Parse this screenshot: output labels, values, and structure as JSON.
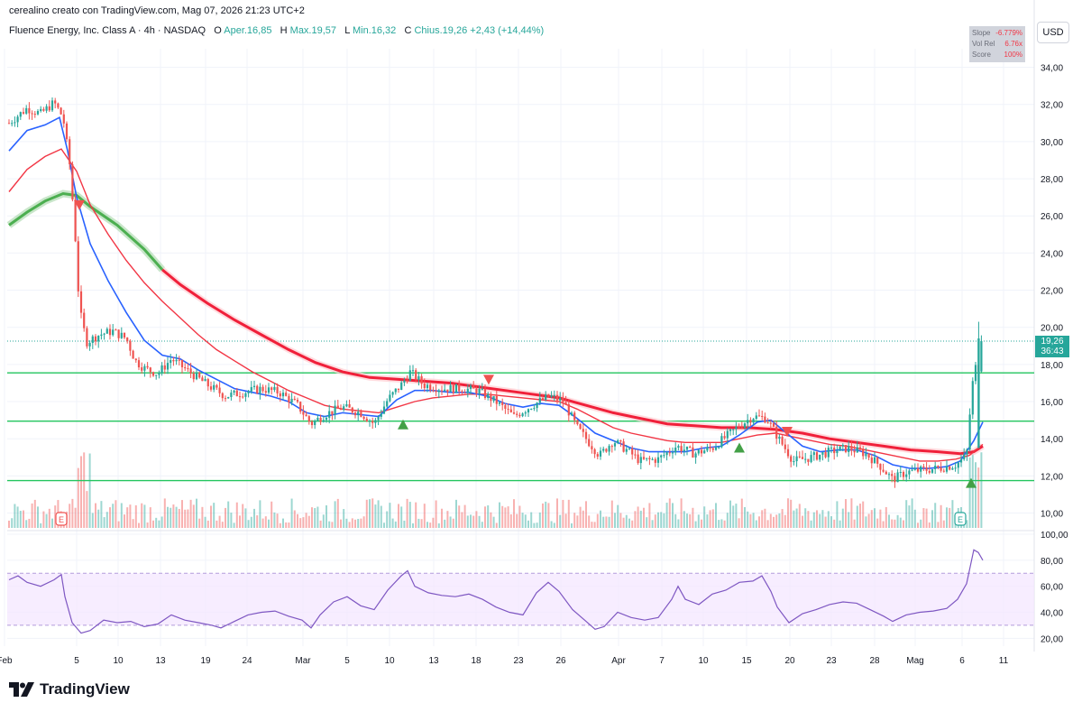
{
  "header": {
    "author_line": "cerealino creato con TradingView.com, Mag 07, 2026 21:23 UTC+2"
  },
  "legend": {
    "instrument": "Fluence Energy, Inc. Class A · 4h · NASDAQ",
    "open_label": "O",
    "open_value": "Aper.16,85",
    "high_label": "H",
    "high_value": "Max.19,57",
    "low_label": "L",
    "low_value": "Min.16,32",
    "close_label": "C",
    "close_value": "Chius.19,26",
    "change": "+2,43 (+14,44%)"
  },
  "indicator_box": {
    "rows": [
      {
        "key": "Slope",
        "value": "-6.779%"
      },
      {
        "key": "Vol Rel",
        "value": "6.76x"
      },
      {
        "key": "Score",
        "value": "100%"
      }
    ]
  },
  "currency": "USD",
  "price_tag": {
    "price": "19,26",
    "countdown": "36:43"
  },
  "brand": "TradingView",
  "colors": {
    "up": "#26a69a",
    "down": "#ef5350",
    "ema_fast": "#2962ff",
    "ema_mid": "#f23645",
    "ema_slow_red": "#f0203a",
    "ema_slow_green": "#4caf50",
    "rsi": "#7e57c2",
    "level": "#22c55e"
  },
  "chart_data": {
    "type": "candlestick",
    "price_axis": {
      "ticks": [
        "34,00",
        "32,00",
        "30,00",
        "28,00",
        "26,00",
        "24,00",
        "22,00",
        "20,00",
        "18,00",
        "16,00",
        "14,00",
        "12,00",
        "10,00"
      ],
      "ylim": [
        9.2,
        35
      ]
    },
    "rsi_axis": {
      "ticks": [
        "100,00",
        "80,00",
        "60,00",
        "40,00",
        "20,00"
      ],
      "ylim": [
        14,
        100
      ],
      "band": [
        30,
        70
      ]
    },
    "x_axis": {
      "ticks": [
        "Feb",
        "5",
        "10",
        "13",
        "19",
        "24",
        "Mar",
        "5",
        "10",
        "13",
        "18",
        "23",
        "26",
        "Apr",
        "7",
        "10",
        "15",
        "20",
        "23",
        "28",
        "Mag",
        "6",
        "11"
      ],
      "tick_index": [
        5,
        85,
        131,
        178,
        228,
        274,
        336,
        385,
        432,
        481,
        528,
        575,
        622,
        686,
        734,
        780,
        828,
        876,
        922,
        970,
        1015,
        1067,
        1113
      ]
    },
    "horizontal_levels": [
      17.55,
      14.95,
      11.75
    ],
    "last_price": 19.26,
    "anchors": {
      "close_path": [
        [
          10,
          31.0
        ],
        [
          30,
          31.8
        ],
        [
          45,
          31.5
        ],
        [
          60,
          32.1
        ],
        [
          70,
          31.3
        ],
        [
          78,
          28.5
        ],
        [
          84,
          24.5
        ],
        [
          88,
          21.0
        ],
        [
          92,
          20.1
        ],
        [
          96,
          19.2
        ],
        [
          110,
          19.6
        ],
        [
          125,
          19.8
        ],
        [
          140,
          19.4
        ],
        [
          150,
          18.2
        ],
        [
          160,
          17.8
        ],
        [
          175,
          17.5
        ],
        [
          190,
          18.3
        ],
        [
          210,
          17.6
        ],
        [
          230,
          16.9
        ],
        [
          250,
          16.3
        ],
        [
          270,
          16.5
        ],
        [
          290,
          16.7
        ],
        [
          310,
          16.5
        ],
        [
          330,
          15.8
        ],
        [
          345,
          14.8
        ],
        [
          360,
          15.3
        ],
        [
          380,
          15.7
        ],
        [
          400,
          15.4
        ],
        [
          415,
          14.8
        ],
        [
          430,
          16.1
        ],
        [
          445,
          16.9
        ],
        [
          455,
          17.6
        ],
        [
          470,
          16.9
        ],
        [
          490,
          16.7
        ],
        [
          510,
          16.7
        ],
        [
          530,
          16.6
        ],
        [
          550,
          16.0
        ],
        [
          570,
          15.2
        ],
        [
          590,
          15.8
        ],
        [
          610,
          16.3
        ],
        [
          625,
          16.0
        ],
        [
          640,
          14.6
        ],
        [
          655,
          13.7
        ],
        [
          665,
          13.1
        ],
        [
          680,
          13.9
        ],
        [
          695,
          13.4
        ],
        [
          710,
          12.8
        ],
        [
          730,
          12.9
        ],
        [
          750,
          13.6
        ],
        [
          770,
          13.2
        ],
        [
          790,
          13.5
        ],
        [
          805,
          14.1
        ],
        [
          820,
          14.7
        ],
        [
          835,
          15.2
        ],
        [
          850,
          15.1
        ],
        [
          865,
          13.9
        ],
        [
          880,
          12.8
        ],
        [
          900,
          13.0
        ],
        [
          920,
          13.3
        ],
        [
          940,
          13.5
        ],
        [
          960,
          13.2
        ],
        [
          975,
          12.6
        ],
        [
          990,
          11.8
        ],
        [
          1005,
          12.2
        ],
        [
          1020,
          12.3
        ],
        [
          1040,
          12.4
        ],
        [
          1060,
          12.6
        ],
        [
          1072,
          13.1
        ],
        [
          1078,
          16.8
        ],
        [
          1083,
          18.1
        ],
        [
          1088,
          17.5
        ],
        [
          1091,
          19.26
        ]
      ],
      "ema_fast_path": [
        [
          10,
          29.5
        ],
        [
          30,
          30.6
        ],
        [
          50,
          30.9
        ],
        [
          66,
          31.3
        ],
        [
          75,
          29.5
        ],
        [
          85,
          27.0
        ],
        [
          100,
          24.5
        ],
        [
          120,
          22.5
        ],
        [
          140,
          20.8
        ],
        [
          160,
          19.3
        ],
        [
          180,
          18.5
        ],
        [
          200,
          18.3
        ],
        [
          220,
          17.7
        ],
        [
          240,
          17.2
        ],
        [
          260,
          16.7
        ],
        [
          280,
          16.5
        ],
        [
          300,
          16.3
        ],
        [
          320,
          16.0
        ],
        [
          340,
          15.4
        ],
        [
          360,
          15.2
        ],
        [
          380,
          15.4
        ],
        [
          400,
          15.3
        ],
        [
          420,
          15.2
        ],
        [
          440,
          16.1
        ],
        [
          460,
          16.6
        ],
        [
          480,
          16.6
        ],
        [
          500,
          16.5
        ],
        [
          520,
          16.5
        ],
        [
          540,
          16.3
        ],
        [
          560,
          15.9
        ],
        [
          580,
          15.7
        ],
        [
          600,
          15.9
        ],
        [
          620,
          15.8
        ],
        [
          640,
          15.1
        ],
        [
          660,
          14.3
        ],
        [
          680,
          13.9
        ],
        [
          700,
          13.5
        ],
        [
          720,
          13.3
        ],
        [
          740,
          13.3
        ],
        [
          760,
          13.3
        ],
        [
          780,
          13.5
        ],
        [
          800,
          13.6
        ],
        [
          820,
          14.2
        ],
        [
          840,
          14.9
        ],
        [
          855,
          15.0
        ],
        [
          870,
          14.4
        ],
        [
          890,
          13.6
        ],
        [
          910,
          13.3
        ],
        [
          930,
          13.4
        ],
        [
          950,
          13.4
        ],
        [
          970,
          13.1
        ],
        [
          990,
          12.6
        ],
        [
          1010,
          12.4
        ],
        [
          1030,
          12.4
        ],
        [
          1050,
          12.5
        ],
        [
          1065,
          12.8
        ],
        [
          1080,
          13.9
        ],
        [
          1090,
          14.9
        ]
      ],
      "ema_mid_path": [
        [
          10,
          27.3
        ],
        [
          30,
          28.5
        ],
        [
          50,
          29.2
        ],
        [
          68,
          29.6
        ],
        [
          85,
          28.4
        ],
        [
          100,
          26.6
        ],
        [
          120,
          25.0
        ],
        [
          140,
          23.6
        ],
        [
          160,
          22.4
        ],
        [
          180,
          21.4
        ],
        [
          200,
          20.5
        ],
        [
          220,
          19.6
        ],
        [
          240,
          18.8
        ],
        [
          260,
          18.2
        ],
        [
          280,
          17.6
        ],
        [
          300,
          17.1
        ],
        [
          320,
          16.6
        ],
        [
          340,
          16.2
        ],
        [
          360,
          15.8
        ],
        [
          380,
          15.6
        ],
        [
          400,
          15.5
        ],
        [
          420,
          15.4
        ],
        [
          440,
          15.7
        ],
        [
          460,
          16.0
        ],
        [
          480,
          16.2
        ],
        [
          500,
          16.3
        ],
        [
          520,
          16.4
        ],
        [
          540,
          16.4
        ],
        [
          560,
          16.3
        ],
        [
          580,
          16.2
        ],
        [
          600,
          16.1
        ],
        [
          620,
          16.0
        ],
        [
          640,
          15.6
        ],
        [
          660,
          15.1
        ],
        [
          680,
          14.6
        ],
        [
          700,
          14.3
        ],
        [
          720,
          14.1
        ],
        [
          740,
          13.9
        ],
        [
          760,
          13.8
        ],
        [
          780,
          13.8
        ],
        [
          800,
          13.8
        ],
        [
          820,
          14.0
        ],
        [
          840,
          14.2
        ],
        [
          860,
          14.3
        ],
        [
          880,
          14.1
        ],
        [
          900,
          13.9
        ],
        [
          920,
          13.7
        ],
        [
          940,
          13.6
        ],
        [
          960,
          13.4
        ],
        [
          980,
          13.2
        ],
        [
          1000,
          13.0
        ],
        [
          1020,
          12.8
        ],
        [
          1040,
          12.8
        ],
        [
          1060,
          12.9
        ],
        [
          1075,
          13.1
        ],
        [
          1090,
          13.7
        ]
      ],
      "ema_slow_path": [
        [
          10,
          25.5
        ],
        [
          30,
          26.2
        ],
        [
          50,
          26.8
        ],
        [
          70,
          27.2
        ],
        [
          85,
          27.1
        ],
        [
          100,
          26.5
        ],
        [
          130,
          25.5
        ],
        [
          160,
          24.2
        ],
        [
          180,
          23.1
        ],
        [
          200,
          22.3
        ],
        [
          230,
          21.3
        ],
        [
          260,
          20.4
        ],
        [
          290,
          19.6
        ],
        [
          320,
          18.8
        ],
        [
          350,
          18.1
        ],
        [
          380,
          17.6
        ],
        [
          410,
          17.3
        ],
        [
          440,
          17.2
        ],
        [
          470,
          17.1
        ],
        [
          500,
          17.0
        ],
        [
          530,
          16.8
        ],
        [
          560,
          16.6
        ],
        [
          590,
          16.4
        ],
        [
          620,
          16.2
        ],
        [
          650,
          15.8
        ],
        [
          680,
          15.4
        ],
        [
          710,
          15.1
        ],
        [
          740,
          14.8
        ],
        [
          770,
          14.7
        ],
        [
          800,
          14.6
        ],
        [
          830,
          14.6
        ],
        [
          860,
          14.5
        ],
        [
          890,
          14.3
        ],
        [
          920,
          14.0
        ],
        [
          950,
          13.8
        ],
        [
          980,
          13.6
        ],
        [
          1010,
          13.4
        ],
        [
          1040,
          13.3
        ],
        [
          1065,
          13.2
        ],
        [
          1080,
          13.3
        ],
        [
          1090,
          13.6
        ]
      ],
      "rsi_path": [
        [
          10,
          65
        ],
        [
          20,
          68
        ],
        [
          30,
          63
        ],
        [
          45,
          60
        ],
        [
          60,
          65
        ],
        [
          68,
          69
        ],
        [
          72,
          52
        ],
        [
          80,
          32
        ],
        [
          90,
          24
        ],
        [
          100,
          26
        ],
        [
          115,
          34
        ],
        [
          130,
          32
        ],
        [
          145,
          33
        ],
        [
          160,
          29
        ],
        [
          175,
          31
        ],
        [
          190,
          38
        ],
        [
          205,
          34
        ],
        [
          220,
          32
        ],
        [
          235,
          30
        ],
        [
          245,
          28
        ],
        [
          260,
          33
        ],
        [
          275,
          38
        ],
        [
          290,
          40
        ],
        [
          305,
          41
        ],
        [
          320,
          37
        ],
        [
          335,
          34
        ],
        [
          345,
          28
        ],
        [
          355,
          38
        ],
        [
          370,
          48
        ],
        [
          385,
          52
        ],
        [
          400,
          45
        ],
        [
          415,
          42
        ],
        [
          430,
          57
        ],
        [
          445,
          68
        ],
        [
          452,
          72
        ],
        [
          460,
          60
        ],
        [
          475,
          55
        ],
        [
          490,
          53
        ],
        [
          505,
          52
        ],
        [
          520,
          54
        ],
        [
          535,
          50
        ],
        [
          550,
          44
        ],
        [
          565,
          40
        ],
        [
          580,
          38
        ],
        [
          595,
          55
        ],
        [
          608,
          63
        ],
        [
          620,
          56
        ],
        [
          635,
          42
        ],
        [
          650,
          33
        ],
        [
          660,
          27
        ],
        [
          670,
          29
        ],
        [
          685,
          40
        ],
        [
          700,
          36
        ],
        [
          715,
          34
        ],
        [
          730,
          36
        ],
        [
          745,
          50
        ],
        [
          752,
          60
        ],
        [
          760,
          50
        ],
        [
          775,
          46
        ],
        [
          790,
          54
        ],
        [
          805,
          57
        ],
        [
          820,
          63
        ],
        [
          835,
          64
        ],
        [
          845,
          68
        ],
        [
          855,
          56
        ],
        [
          862,
          44
        ],
        [
          875,
          32
        ],
        [
          890,
          39
        ],
        [
          905,
          42
        ],
        [
          920,
          46
        ],
        [
          935,
          48
        ],
        [
          950,
          47
        ],
        [
          965,
          42
        ],
        [
          980,
          37
        ],
        [
          990,
          33
        ],
        [
          1005,
          38
        ],
        [
          1020,
          40
        ],
        [
          1035,
          41
        ],
        [
          1050,
          43
        ],
        [
          1062,
          50
        ],
        [
          1072,
          62
        ],
        [
          1080,
          88
        ],
        [
          1085,
          86
        ],
        [
          1090,
          80
        ]
      ]
    },
    "earnings_markers_index": [
      68,
      1065
    ],
    "buy_signals": [
      {
        "x": 447,
        "price": 14.75
      },
      {
        "x": 820,
        "price": 13.5
      },
      {
        "x": 1077,
        "price": 11.6
      }
    ],
    "sell_signals": [
      {
        "x": 88,
        "price": 26.6
      },
      {
        "x": 542,
        "price": 17.2
      },
      {
        "x": 873,
        "price": 14.4
      }
    ]
  }
}
